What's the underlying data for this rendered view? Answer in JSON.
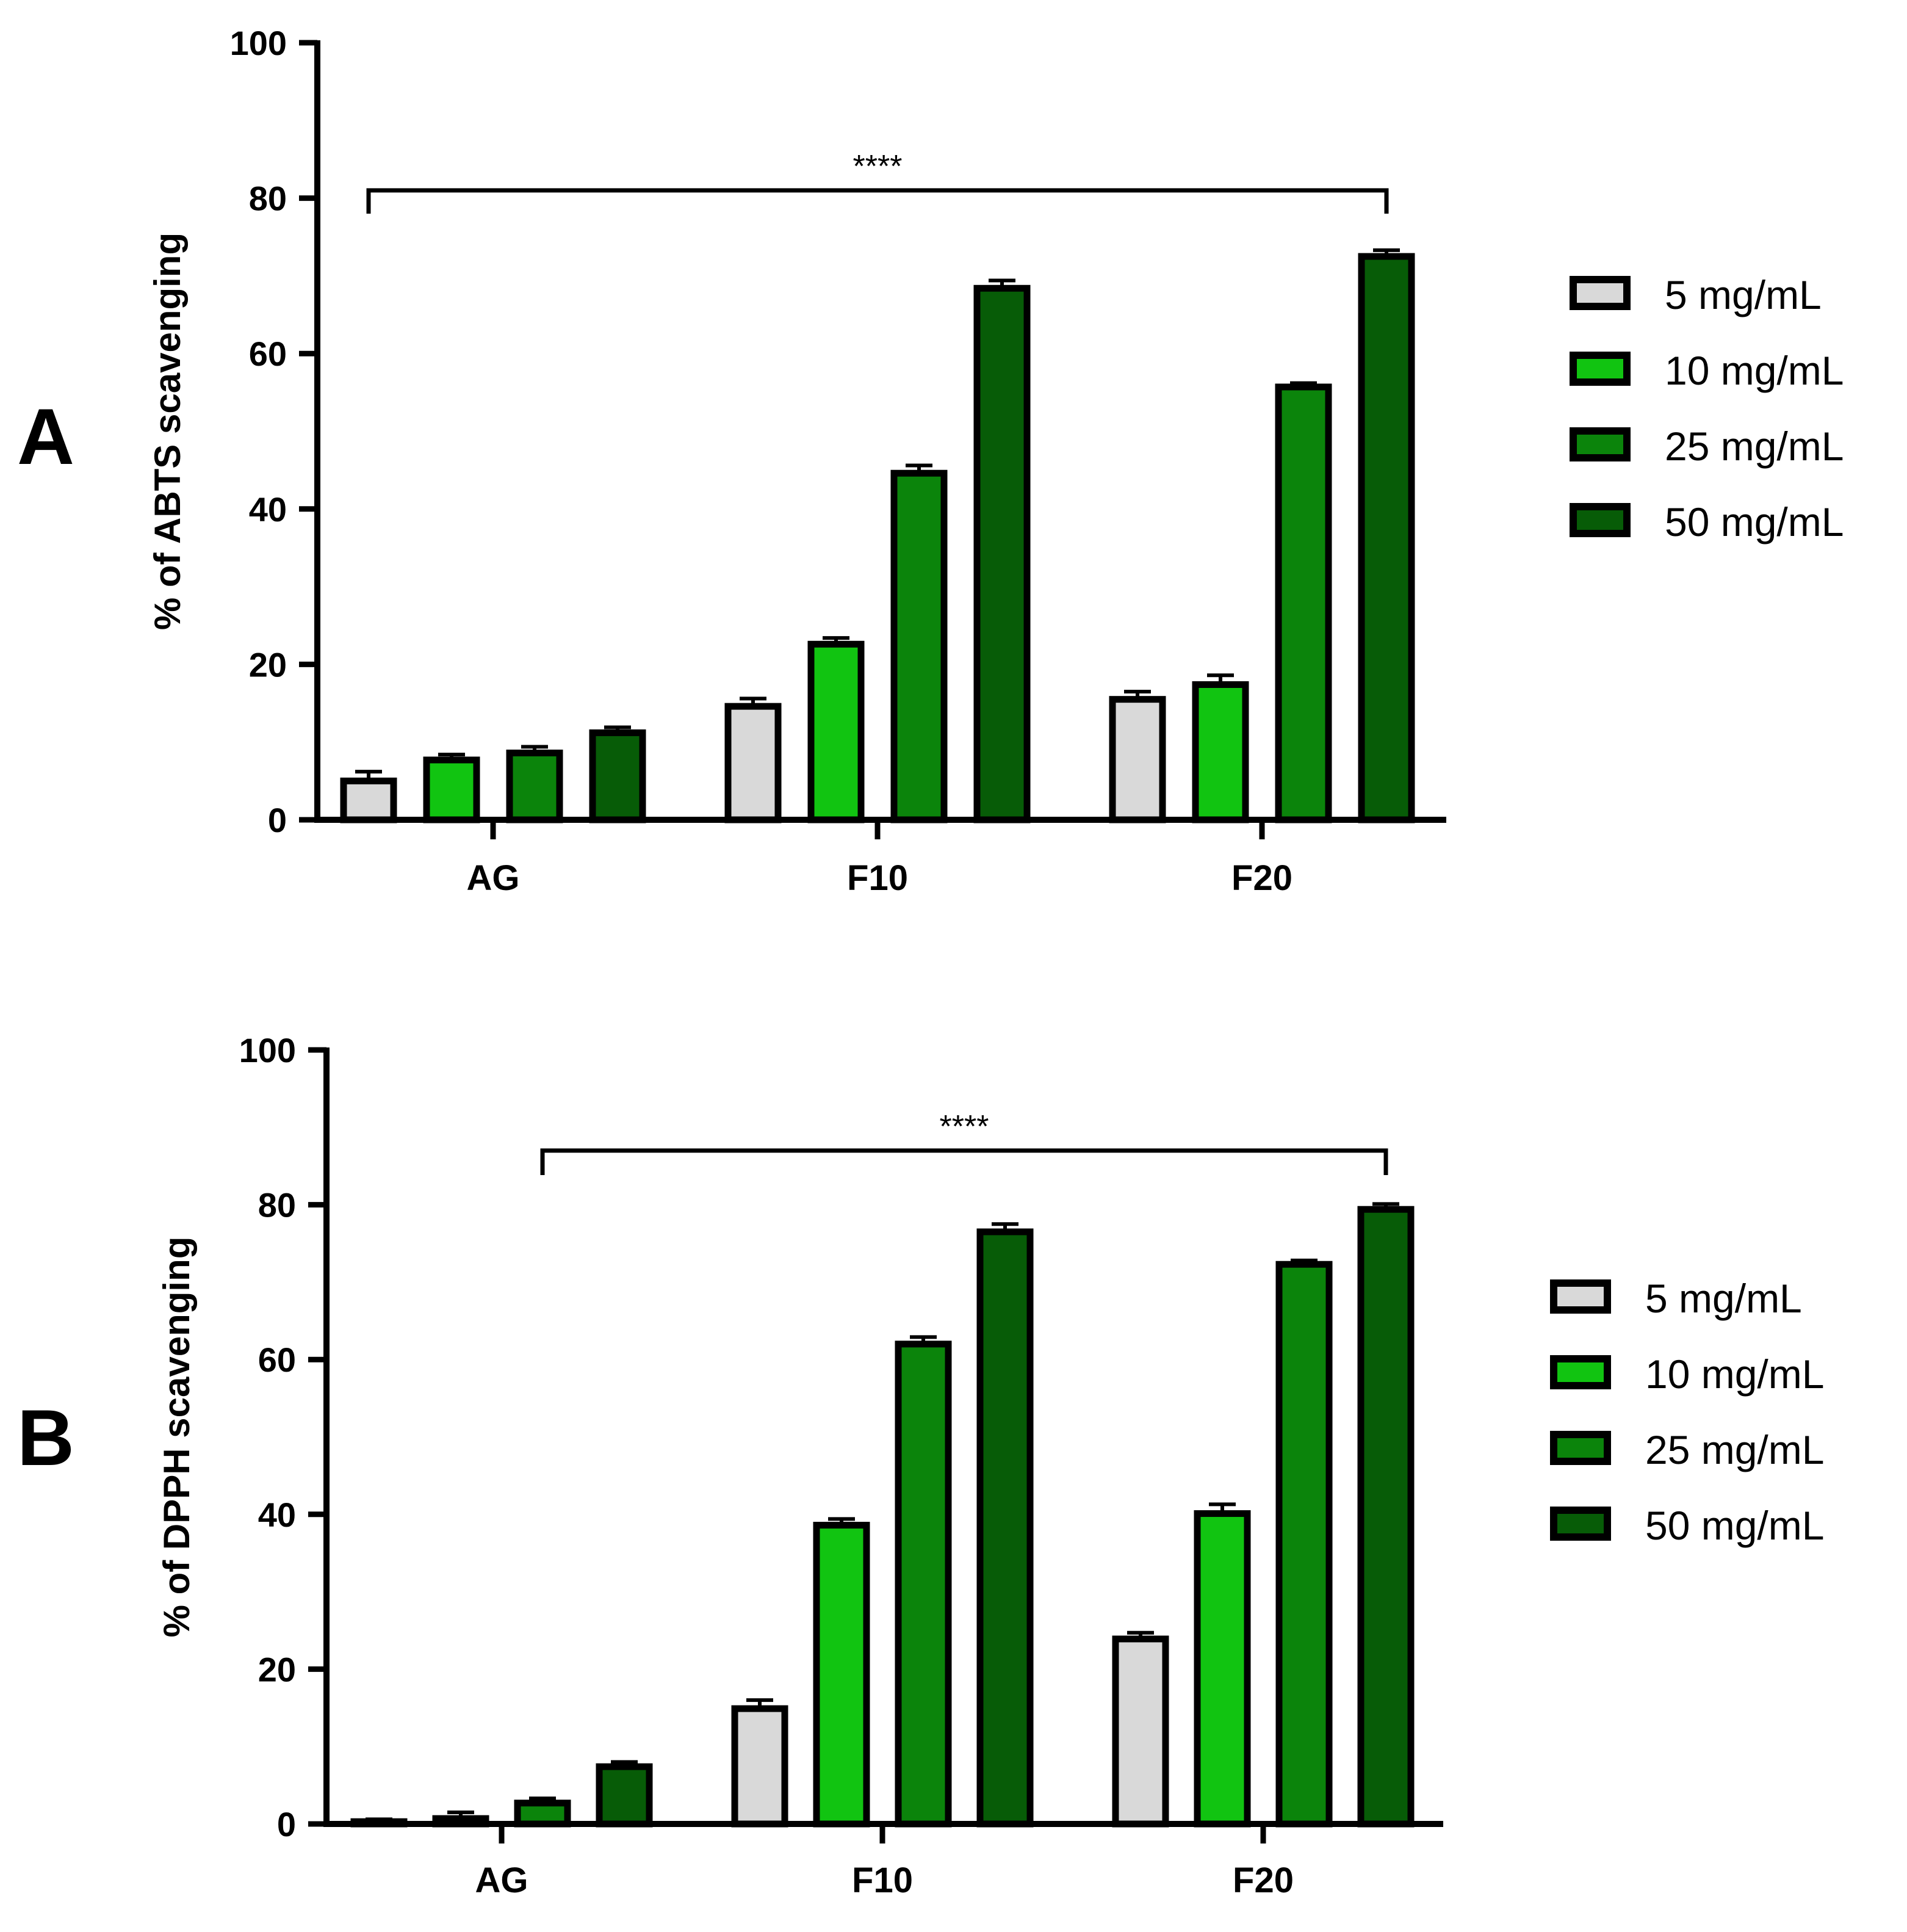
{
  "figure": {
    "panels": [
      "A",
      "B"
    ]
  },
  "legend": {
    "items": [
      {
        "label": "5 mg/mL",
        "color": "#d9d9d9"
      },
      {
        "label": "10 mg/mL",
        "color": "#11c411"
      },
      {
        "label": "25 mg/mL",
        "color": "#0b840b"
      },
      {
        "label": "50 mg/mL",
        "color": "#075c07"
      }
    ]
  },
  "chart_data": [
    {
      "panel": "A",
      "type": "bar",
      "title": "",
      "xlabel": "",
      "ylabel": "% of ABTS scavenging",
      "ylim": [
        0,
        100
      ],
      "yticks": [
        0,
        20,
        40,
        60,
        80,
        100
      ],
      "categories": [
        "AG",
        "F10",
        "F20"
      ],
      "series": [
        {
          "name": "5 mg/mL",
          "color": "#d9d9d9",
          "values": [
            5.0,
            14.6,
            15.5
          ],
          "errors": [
            1.2,
            1.0,
            1.0
          ]
        },
        {
          "name": "10 mg/mL",
          "color": "#11c411",
          "values": [
            7.7,
            22.6,
            17.4
          ],
          "errors": [
            0.7,
            0.8,
            1.2
          ]
        },
        {
          "name": "25 mg/mL",
          "color": "#0b840b",
          "values": [
            8.6,
            44.6,
            55.7
          ],
          "errors": [
            0.8,
            1.0,
            0.5
          ]
        },
        {
          "name": "50 mg/mL",
          "color": "#075c07",
          "values": [
            11.2,
            68.4,
            72.5
          ],
          "errors": [
            0.7,
            1.0,
            0.8
          ]
        }
      ],
      "significance": {
        "label": "****",
        "from_category": "AG",
        "to_category": "F20",
        "from_series": 0,
        "to_series": 3,
        "y": 81
      }
    },
    {
      "panel": "B",
      "type": "bar",
      "title": "",
      "xlabel": "",
      "ylabel": "% of DPPH scavenging",
      "ylim": [
        0,
        100
      ],
      "yticks": [
        0,
        20,
        40,
        60,
        80,
        100
      ],
      "categories": [
        "AG",
        "F10",
        "F20"
      ],
      "series": [
        {
          "name": "5 mg/mL",
          "color": "#d9d9d9",
          "values": [
            0.3,
            14.9,
            23.9
          ],
          "errors": [
            0.3,
            1.1,
            0.8
          ]
        },
        {
          "name": "10 mg/mL",
          "color": "#11c411",
          "values": [
            0.7,
            38.6,
            40.1
          ],
          "errors": [
            0.8,
            0.8,
            1.2
          ]
        },
        {
          "name": "25 mg/mL",
          "color": "#0b840b",
          "values": [
            2.7,
            62.0,
            72.3
          ],
          "errors": [
            0.6,
            0.9,
            0.5
          ]
        },
        {
          "name": "50 mg/mL",
          "color": "#075c07",
          "values": [
            7.4,
            76.5,
            79.4
          ],
          "errors": [
            0.6,
            1.0,
            0.7
          ]
        }
      ],
      "significance": {
        "label": "****",
        "from_category": "AG",
        "to_category": "F20",
        "from_series": 2,
        "to_series": 3,
        "y": 87
      }
    }
  ]
}
